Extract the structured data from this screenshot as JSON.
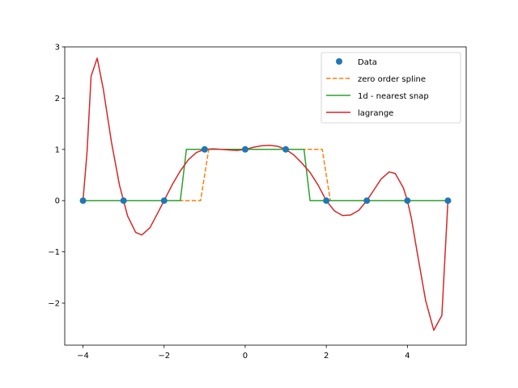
{
  "chart_data": {
    "type": "line",
    "title": "",
    "xlabel": "",
    "ylabel": "",
    "xlim": [
      -4.45,
      5.45
    ],
    "ylim": [
      -2.82,
      3.0
    ],
    "xticks": [
      -4,
      -2,
      0,
      2,
      4
    ],
    "xtick_labels": [
      "−4",
      "−2",
      "0",
      "2",
      "4"
    ],
    "yticks": [
      -2,
      -1,
      0,
      1,
      2,
      3
    ],
    "ytick_labels": [
      "−2",
      "−1",
      "0",
      "1",
      "2",
      "3"
    ],
    "grid": false,
    "legend_position": "top-right",
    "series": [
      {
        "name": "Data",
        "style": "markers",
        "color": "#1f77b4",
        "x": [
          -4,
          -3,
          -2,
          -1,
          0,
          1,
          2,
          3,
          4,
          5
        ],
        "y": [
          0,
          0,
          0,
          1,
          1,
          1,
          0,
          0,
          0,
          0
        ]
      },
      {
        "name": "zero order spline",
        "style": "dashed",
        "color": "#ff7f0e",
        "x": [
          -4,
          -1.1,
          -0.9,
          1.9,
          2.1,
          5
        ],
        "y": [
          0,
          0,
          1,
          1,
          0,
          0
        ]
      },
      {
        "name": "1d - nearest snap",
        "style": "solid",
        "color": "#2ca02c",
        "x": [
          -4,
          -1.6,
          -1.45,
          1.45,
          1.6,
          5
        ],
        "y": [
          0,
          0,
          1,
          1,
          0,
          0
        ]
      },
      {
        "name": "lagrange",
        "style": "solid",
        "color": "#d62728",
        "x": [
          -4,
          -3.9,
          -3.8,
          -3.65,
          -3.5,
          -3.3,
          -3.1,
          -3.0,
          -2.9,
          -2.7,
          -2.55,
          -2.35,
          -2.15,
          -2.0,
          -1.8,
          -1.6,
          -1.4,
          -1.2,
          -1.0,
          -0.8,
          -0.6,
          -0.4,
          -0.2,
          0.0,
          0.2,
          0.4,
          0.6,
          0.8,
          1.0,
          1.2,
          1.4,
          1.6,
          1.8,
          2.0,
          2.2,
          2.4,
          2.6,
          2.8,
          3.0,
          3.2,
          3.35,
          3.55,
          3.7,
          3.9,
          4.0,
          4.1,
          4.25,
          4.45,
          4.65,
          4.85,
          5.0
        ],
        "y": [
          0,
          0.95,
          2.43,
          2.78,
          2.18,
          1.15,
          0.3,
          0.0,
          -0.3,
          -0.62,
          -0.67,
          -0.53,
          -0.23,
          0.0,
          0.31,
          0.58,
          0.8,
          0.94,
          1.0,
          1.01,
          1.0,
          0.99,
          0.98,
          1.0,
          1.04,
          1.07,
          1.08,
          1.06,
          1.0,
          0.89,
          0.73,
          0.55,
          0.3,
          0.0,
          -0.2,
          -0.29,
          -0.28,
          -0.19,
          0.0,
          0.24,
          0.42,
          0.56,
          0.53,
          0.25,
          0.0,
          -0.35,
          -1.05,
          -1.95,
          -2.53,
          -2.24,
          0.0
        ]
      }
    ]
  }
}
